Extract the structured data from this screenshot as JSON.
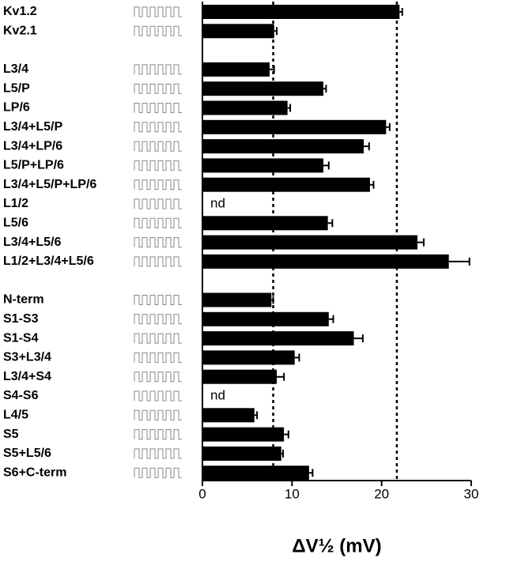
{
  "chart_data": {
    "type": "bar",
    "orientation": "horizontal",
    "x_label": "ΔV½ (mV)",
    "categories": [
      "Kv1.2",
      "Kv2.1",
      "L3/4",
      "L5/P",
      "LP/6",
      "L3/4+L5/P",
      "L3/4+LP/6",
      "L5/P+LP/6",
      "L3/4+L5/P+LP/6",
      "L1/2",
      "L5/6",
      "L3/4+L5/6",
      "L1/2+L3/4+L5/6",
      "N-term",
      "S1-S3",
      "S1-S4",
      "S3+L3/4",
      "L3/4+S4",
      "S4-S6",
      "L4/5",
      "S5",
      "S5+L5/6",
      "S6+C-term"
    ],
    "values": [
      22,
      8,
      7.5,
      13.5,
      9.5,
      20.5,
      18,
      13.5,
      18.7,
      null,
      14,
      24,
      27.5,
      7.7,
      14.1,
      16.9,
      10.3,
      8.3,
      null,
      5.8,
      9.1,
      8.8,
      11.9
    ],
    "errors": [
      0.3,
      0.3,
      0.5,
      0.3,
      0.3,
      0.4,
      0.6,
      0.6,
      0.4,
      null,
      0.5,
      0.7,
      2.3,
      0.2,
      0.5,
      1.0,
      0.5,
      0.8,
      null,
      0.3,
      0.5,
      0.2,
      0.4
    ],
    "value_labels": [
      null,
      null,
      null,
      null,
      null,
      null,
      null,
      null,
      null,
      "nd",
      null,
      null,
      null,
      null,
      null,
      null,
      null,
      null,
      "nd",
      null,
      null,
      null,
      null
    ],
    "color": "#000000",
    "xlim": [
      0,
      30
    ],
    "xticks": [
      0,
      10,
      20,
      30
    ],
    "reference_lines": [
      7.9,
      21.7
    ]
  }
}
